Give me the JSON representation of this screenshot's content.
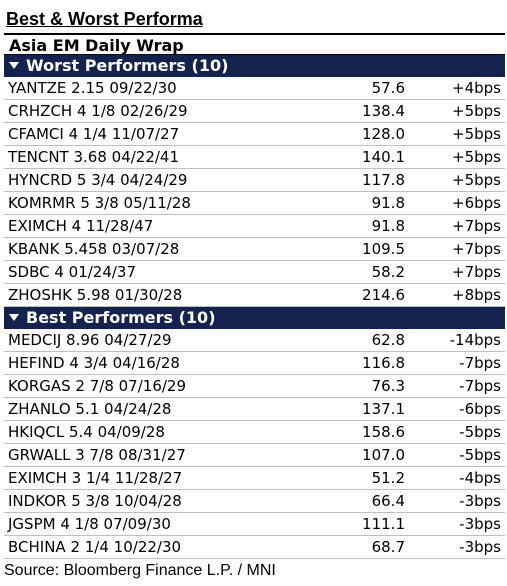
{
  "title": "Best & Worst Performa",
  "subtitle": "Asia EM Daily Wrap",
  "worst": {
    "header": "Worst Performers (10)",
    "rows": [
      {
        "name": "YANTZE 2.15 09/22/30",
        "price": "57.6",
        "change": "+4bps"
      },
      {
        "name": "CRHZCH 4 1/8 02/26/29",
        "price": "138.4",
        "change": "+5bps"
      },
      {
        "name": "CFAMCI 4 1/4 11/07/27",
        "price": "128.0",
        "change": "+5bps"
      },
      {
        "name": "TENCNT 3.68 04/22/41",
        "price": "140.1",
        "change": "+5bps"
      },
      {
        "name": "HYNCRD 5 3/4 04/24/29",
        "price": "117.8",
        "change": "+5bps"
      },
      {
        "name": "KOMRMR 5 3/8 05/11/28",
        "price": "91.8",
        "change": "+6bps"
      },
      {
        "name": "EXIMCH 4 11/28/47",
        "price": "91.8",
        "change": "+7bps"
      },
      {
        "name": "KBANK 5.458 03/07/28",
        "price": "109.5",
        "change": "+7bps"
      },
      {
        "name": "SDBC 4 01/24/37",
        "price": "58.2",
        "change": "+7bps"
      },
      {
        "name": "ZHOSHK 5.98 01/30/28",
        "price": "214.6",
        "change": "+8bps"
      }
    ]
  },
  "best": {
    "header": "Best Performers (10)",
    "rows": [
      {
        "name": "MEDCIJ 8.96 04/27/29",
        "price": "62.8",
        "change": "-14bps"
      },
      {
        "name": "HEFIND 4 3/4 04/16/28",
        "price": "116.8",
        "change": "-7bps"
      },
      {
        "name": "KORGAS 2 7/8 07/16/29",
        "price": "76.3",
        "change": "-7bps"
      },
      {
        "name": "ZHANLO 5.1 04/24/28",
        "price": "137.1",
        "change": "-6bps"
      },
      {
        "name": "HKIQCL 5.4 04/09/28",
        "price": "158.6",
        "change": "-5bps"
      },
      {
        "name": "GRWALL 3 7/8 08/31/27",
        "price": "107.0",
        "change": "-5bps"
      },
      {
        "name": "EXIMCH 3 1/4 11/28/27",
        "price": "51.2",
        "change": "-4bps"
      },
      {
        "name": "INDKOR 5 3/8 10/04/28",
        "price": "66.4",
        "change": "-3bps"
      },
      {
        "name": "JGSPM 4 1/8 07/09/30",
        "price": "111.1",
        "change": "-3bps"
      },
      {
        "name": "BCHINA 2 1/4 10/22/30",
        "price": "68.7",
        "change": "-3bps"
      }
    ]
  },
  "source": "Source: Bloomberg Finance L.P. / MNI",
  "colors": {
    "section_bg": "#14224e",
    "section_text": "#ffffff"
  }
}
